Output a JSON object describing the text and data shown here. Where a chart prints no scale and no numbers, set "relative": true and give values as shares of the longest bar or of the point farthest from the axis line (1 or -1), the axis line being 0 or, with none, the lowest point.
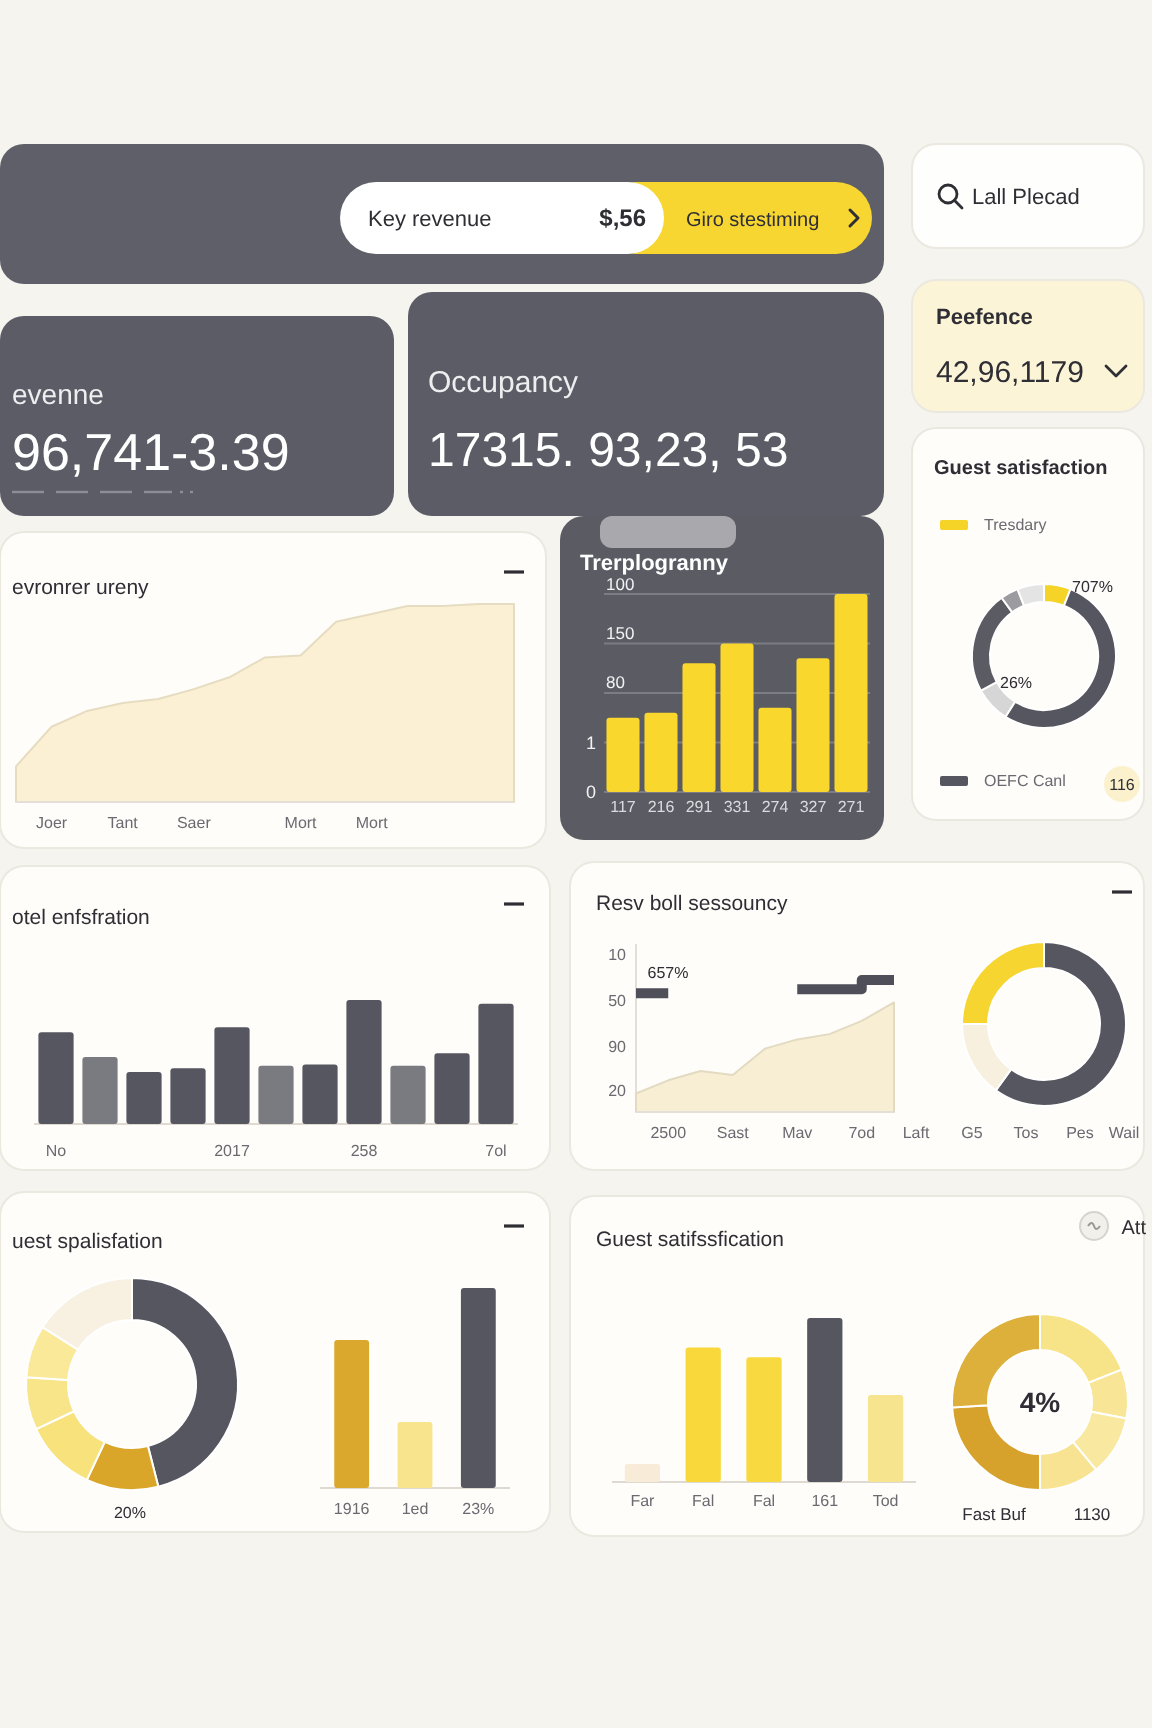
{
  "chart_data": [
    {
      "type": "other",
      "annotations": [
        "Key revenue",
        "$,56",
        "Giro stestiming"
      ]
    },
    {
      "type": "other",
      "annotations": [
        "Lall Plecad"
      ]
    },
    {
      "type": "other",
      "title": "evenne",
      "annotations": [
        "96,741-3.39"
      ]
    },
    {
      "type": "other",
      "title": "Occupancy",
      "annotations": [
        "17315. 93,23, 53"
      ]
    },
    {
      "type": "other",
      "title": "Peefence",
      "annotations": [
        "42,96,1179"
      ]
    },
    {
      "type": "area",
      "title": "evronrer ureny",
      "relative": true,
      "categories": [
        null,
        "Joer",
        null,
        "Tant",
        null,
        "Saer",
        null,
        null,
        "Mort",
        null,
        "Mort",
        null,
        null,
        null,
        null
      ],
      "values": [
        0.18,
        0.38,
        0.46,
        0.5,
        0.52,
        0.57,
        0.63,
        0.73,
        0.74,
        0.91,
        0.95,
        0.99,
        0.99,
        1,
        1
      ],
      "color": "#fbf0d3"
    },
    {
      "type": "bar",
      "title": "Trerplogranny",
      "categories": [
        "117",
        "216",
        "291",
        "331",
        "274",
        "327",
        "271"
      ],
      "values": [
        1.5,
        1.6,
        2.6,
        3.0,
        1.7,
        2.7,
        4.0
      ],
      "color": "#fad72c",
      "ylim": [
        0,
        4
      ],
      "yticks": [
        0,
        1,
        {
          "value": 2,
          "label": null
        },
        {
          "value": 3,
          "label": null
        },
        {
          "value": 4,
          "label": null
        }
      ],
      "grid": "y",
      "annotations": [
        "100",
        "150",
        "80"
      ]
    },
    {
      "type": "donut",
      "title": "Guest satisfaction",
      "categories": [
        "Tresdary",
        "OEFC Canl",
        null,
        null,
        null,
        null
      ],
      "values": [
        6,
        53,
        8,
        23,
        4,
        6
      ],
      "colors": [
        "#f5d327",
        "#55565f",
        "#d6d6d6",
        "#5a5b63",
        "#9c9ca0",
        "#e4e4e4"
      ],
      "legend": "left",
      "annotations": [
        "707%",
        "26%",
        "116"
      ]
    },
    {
      "type": "bar",
      "title": "otel enfsfration",
      "relative": true,
      "categories": [
        "No",
        null,
        null,
        null,
        "2017",
        null,
        null,
        "258",
        null,
        null,
        "7ol"
      ],
      "values": [
        0.74,
        0.54,
        0.42,
        0.45,
        0.78,
        0.47,
        0.48,
        1,
        0.47,
        0.57,
        0.97
      ],
      "colors": [
        "#55565f",
        "#7a7a81",
        "#55565f",
        "#55565f",
        "#55565f",
        "#7a7a81",
        "#55565f",
        "#55565f",
        "#7a7a81",
        "#55565f",
        "#55565f"
      ]
    },
    {
      "type": "area",
      "title": "Resv boll sessouncy",
      "relative": true,
      "categories": [
        null,
        "2500",
        null,
        "Sast",
        null,
        "Mav",
        null,
        "7od",
        null
      ],
      "series": [
        {
          "type": "area",
          "color": "#f8eed4",
          "values": [
            0.14,
            0.24,
            0.31,
            0.28,
            0.48,
            0.55,
            0.59,
            0.69,
            0.83
          ]
        },
        {
          "type": "step",
          "color": "#4e4f58",
          "values": [
            0.9,
            0.9,
            null,
            null,
            null,
            0.93,
            0.93,
            1,
            1
          ]
        }
      ],
      "annotations": [
        "10",
        "50",
        "90",
        "20",
        "657%",
        "Laft",
        "G5",
        "Tos",
        "Pes",
        "Wail"
      ]
    },
    {
      "type": "donut",
      "categories": [
        null,
        null,
        null
      ],
      "values": [
        60,
        15,
        25
      ],
      "colors": [
        "#55565f",
        "#f7f0df",
        "#f6d531"
      ]
    },
    {
      "type": "donut",
      "title": "uest spalisfation",
      "categories": [
        null,
        null,
        null,
        null,
        null,
        null
      ],
      "values": [
        46,
        11,
        11,
        8,
        8,
        16
      ],
      "colors": [
        "#55565f",
        "#d9a62a",
        "#f7e27c",
        "#f8e58a",
        "#f9e999",
        "#f8f1e2"
      ],
      "annotations": [
        "20%"
      ]
    },
    {
      "type": "bar",
      "relative": true,
      "categories": [
        "1916",
        "1ed",
        "23%"
      ],
      "values": [
        0.74,
        0.33,
        1
      ],
      "colors": [
        "#d9a82c",
        "#f8e48c",
        "#55565f"
      ]
    },
    {
      "type": "bar",
      "title": "Guest satifssfication",
      "relative": true,
      "categories": [
        "Far",
        "Fal",
        "Fal",
        "161",
        "Tod"
      ],
      "values": [
        0.11,
        0.82,
        0.76,
        1,
        0.53
      ],
      "colors": [
        "#f8ecd8",
        "#f8d83a",
        "#f8d93f",
        "#55565f",
        "#f7e48e"
      ],
      "annotations": [
        "Att"
      ]
    },
    {
      "type": "donut",
      "categories": [
        null,
        null,
        null,
        null,
        null,
        null
      ],
      "values": [
        19,
        9,
        11,
        11,
        24,
        26
      ],
      "colors": [
        "#f8e488",
        "#f8e696",
        "#f9e9a0",
        "#f7e392",
        "#d6a22c",
        "#ddb03c"
      ],
      "annotations": [
        "4%",
        "Fast Buf",
        "1130"
      ]
    }
  ]
}
